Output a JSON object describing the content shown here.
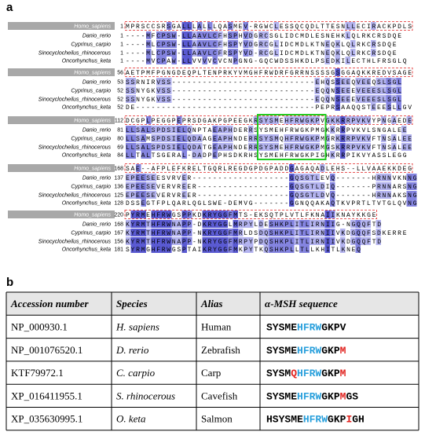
{
  "panel_a": {
    "label": "a",
    "blocks": [
      {
        "rows": [
          {
            "name": "Homo_sapiens",
            "start": "1",
            "seq": "MPRSCCSRSGALLLALLLQASMEV-RGWCLESSQCQDLTTESNLLECIRACKPDLS"
          },
          {
            "name": "Danio_rerio",
            "start": "1",
            "seq": "----MFCPSW-LLAAVLCFHSPHVDGRCSGLIDCMDLESNEHKLQLRKCRSDQE"
          },
          {
            "name": "Cyprinus_carpio",
            "start": "1",
            "seq": "----MLCPSW-LLAAVLCFHSPYVDGRCGLIDCMDLKTNEQKLQLRKCRSDQE"
          },
          {
            "name": "Sinocyclocheilus_rhinocerous",
            "start": "1",
            "seq": "----MLCPSW-LLAAVLCFRSPYVD-RCGLIDCMDLKTNEQKLQLRKCRSDQE"
          },
          {
            "name": "Oncorhynchus_keta",
            "start": "1",
            "seq": "----MVCPAW-LLVVVVCVCNPGNG-GQCWDSSHKDLPSEDKILECTHLFRSGLQ"
          }
        ]
      },
      {
        "rows": [
          {
            "name": "Homo_sapiens",
            "start": "56",
            "seq": "AETPMFPGNGDEQPLTENPRKYVMGHFRWDRFGRRNSSSSGSGGAQKKREDVSAGE"
          },
          {
            "name": "Danio_rerio",
            "start": "53",
            "seq": "SSRNIRVSS----------------------------EHQSSEEQVEEQSLSGL"
          },
          {
            "name": "Cyprinus_carpio",
            "start": "52",
            "seq": "SSNYGKVSS----------------------------EQQNSEEEVEEESLSGL"
          },
          {
            "name": "Sinocyclocheilus_rhinocerous",
            "start": "52",
            "seq": "SSNYGKVSS----------------------------EQQNSEEEVEEESLSGL"
          },
          {
            "name": "Oncorhynchus_keta",
            "start": "52",
            "seq": "DE-----------------------------------PEPRSAAQQSTEEESLLGV"
          }
        ]
      },
      {
        "rows": [
          {
            "name": "Homo_sapiens",
            "start": "112",
            "seq": "DCGPLPEGGPEPRSDGAKPGPEEGKRSYSMEHFRWGKPVGKKRRPVKVYPNGAEDE"
          },
          {
            "name": "Danio_rerio",
            "start": "81",
            "seq": "LLSALSPDSIELQNPTAEAPHDERRSYSMEHFRWGKPMGKKRRPVKVLSNGALEE"
          },
          {
            "name": "Cyprinus_carpio",
            "start": "80",
            "seq": "LLSAMSPDSIELQDAAGEAPHNDERRSYSMQHFRWGKPMGRKRRPVKVFTNSALEE"
          },
          {
            "name": "Sinocyclocheilus_rhinocerous",
            "start": "69",
            "seq": "LLSALSPDSIELQDATGEAPHNDERRSYSMEHFRWGKPMGSKRRPVKVFTNSALEE"
          },
          {
            "name": "Oncorhynchus_keta",
            "start": "84",
            "seq": "LLTALTSGERAL-DADPEPHSDKRHSYSMEHFRWGKPIGHKRRPIKVYASSLEGG"
          }
        ]
      },
      {
        "rows": [
          {
            "name": "Homo_sapiens",
            "start": "168",
            "seq": "SAE--AFPLEFKRELTGQRLREGDGPDGPADDGAGAQADLEHS--LLVAAEKKDEG"
          },
          {
            "name": "Danio_rerio",
            "start": "137",
            "seq": "EPEESEESVRVER-------------------GQSGTLEVQ-------HRNNVKNNG"
          },
          {
            "name": "Cyprinus_carpio",
            "start": "136",
            "seq": "EPEESEVERVREER------------------GQSGTLDIQ-------PRNNARSNG"
          },
          {
            "name": "Sinocyclocheilus_rhinocerous",
            "start": "125",
            "seq": "EPEESEVERVREER------------------GQSGTLDVQ-------HRNNAKSNG"
          },
          {
            "name": "Oncorhynchus_keta",
            "start": "128",
            "seq": "DSSEGTFPLQARLQGLSWE-DEMVG-------GGNQQAKAQTKVPRTLTVTGLQVNG"
          }
        ]
      },
      {
        "rows": [
          {
            "name": "Homo_sapiens",
            "start": "220",
            "seq": "PYRMEHFRWGSPPKDKRYGGFMTS-EKSQTPLVTLFKNAIIKNAYKKGE"
          },
          {
            "name": "Danio_rerio",
            "start": "168",
            "seq": "KYRMTHFRWNAPP-DKRYGGLMRPYLDESHKPLITLIRNIIG-NGQQFTD"
          },
          {
            "name": "Cyprinus_carpio",
            "start": "167",
            "seq": "KYRMTHFRWNAPP-NKRYGGFMRLDSDQSHKPLITLIRNIIVKDGQQFSDKERRE"
          },
          {
            "name": "Sinocyclocheilus_rhinocerous",
            "start": "156",
            "seq": "KYRMTHFRWNAPP-NKRYGGFMRPYPDQSHKPLITLIRNIIVKDGQQFTD"
          },
          {
            "name": "Oncorhynchus_keta",
            "start": "181",
            "seq": "SYRMGHFRWGSPTAIKRYGGFMKPYTKQSHKPLLTLLKHITLKNEQ"
          }
        ]
      }
    ]
  },
  "panel_b": {
    "label": "b",
    "table": {
      "header": [
        "Accession number",
        "Species",
        "Alias",
        "α-MSH sequence"
      ],
      "rows": [
        {
          "accession": "NP_000930.1",
          "species": "H. sapiens",
          "alias": "Human",
          "sequence": [
            {
              "text": "SYSME",
              "color": "#000000"
            },
            {
              "text": "HFRW",
              "color": "#2aa0dc"
            },
            {
              "text": "GKPV",
              "color": "#000000"
            }
          ]
        },
        {
          "accession": "NP_001076520.1",
          "species": "D. rerio",
          "alias": "Zebrafish",
          "sequence": [
            {
              "text": "SYSME",
              "color": "#000000"
            },
            {
              "text": "HFRW",
              "color": "#2aa0dc"
            },
            {
              "text": "GKP",
              "color": "#000000"
            },
            {
              "text": "M",
              "color": "#e0201c"
            }
          ]
        },
        {
          "accession": "KTF79972.1",
          "species": "C. carpio",
          "alias": "Carp",
          "sequence": [
            {
              "text": "SYSM",
              "color": "#000000"
            },
            {
              "text": "Q",
              "color": "#e0201c"
            },
            {
              "text": "HFRW",
              "color": "#2aa0dc"
            },
            {
              "text": "GKP",
              "color": "#000000"
            },
            {
              "text": "M",
              "color": "#e0201c"
            }
          ]
        },
        {
          "accession": "XP_016411955.1",
          "species": "S. rhinocerous",
          "alias": "Cavefish",
          "sequence": [
            {
              "text": "SYSME",
              "color": "#000000"
            },
            {
              "text": "HFRW",
              "color": "#2aa0dc"
            },
            {
              "text": "GKP",
              "color": "#000000"
            },
            {
              "text": "M",
              "color": "#e0201c"
            },
            {
              "text": "GS",
              "color": "#000000"
            }
          ]
        },
        {
          "accession": "XP_035630995.1",
          "species": "O. keta",
          "alias": "Salmon",
          "sequence": [
            {
              "text": "HSYSME",
              "color": "#000000"
            },
            {
              "text": "HFRW",
              "color": "#2aa0dc"
            },
            {
              "text": "GKP",
              "color": "#000000"
            },
            {
              "text": "I",
              "color": "#e0201c"
            },
            {
              "text": "GH",
              "color": "#000000"
            }
          ]
        }
      ]
    }
  }
}
